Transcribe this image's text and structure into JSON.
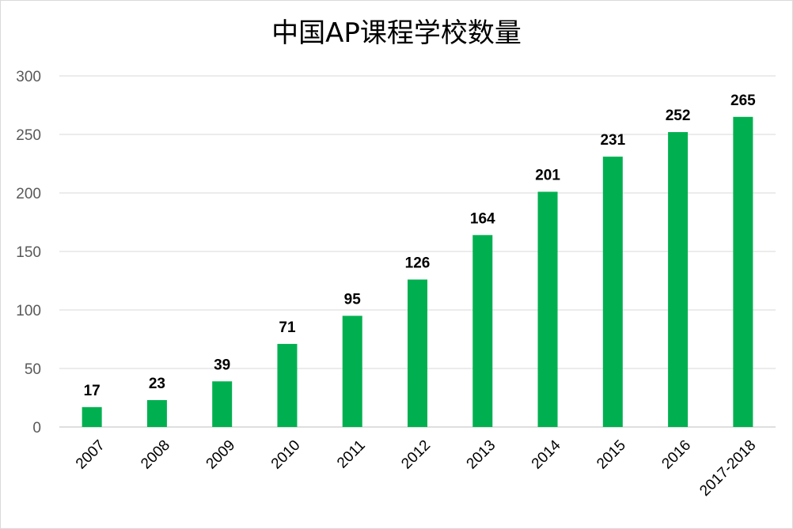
{
  "chart_data": {
    "type": "bar",
    "title": "中国AP课程学校数量",
    "xlabel": "",
    "ylabel": "",
    "categories": [
      "2007",
      "2008",
      "2009",
      "2010",
      "2011",
      "2012",
      "2013",
      "2014",
      "2015",
      "2016",
      "2017-2018"
    ],
    "values": [
      17,
      23,
      39,
      71,
      95,
      126,
      164,
      201,
      231,
      252,
      265
    ],
    "ylim": [
      0,
      300
    ],
    "yticks": [
      0,
      50,
      100,
      150,
      200,
      250,
      300
    ],
    "grid": true,
    "legend": "none",
    "data_labels": true,
    "bar_color": "#00b050"
  }
}
